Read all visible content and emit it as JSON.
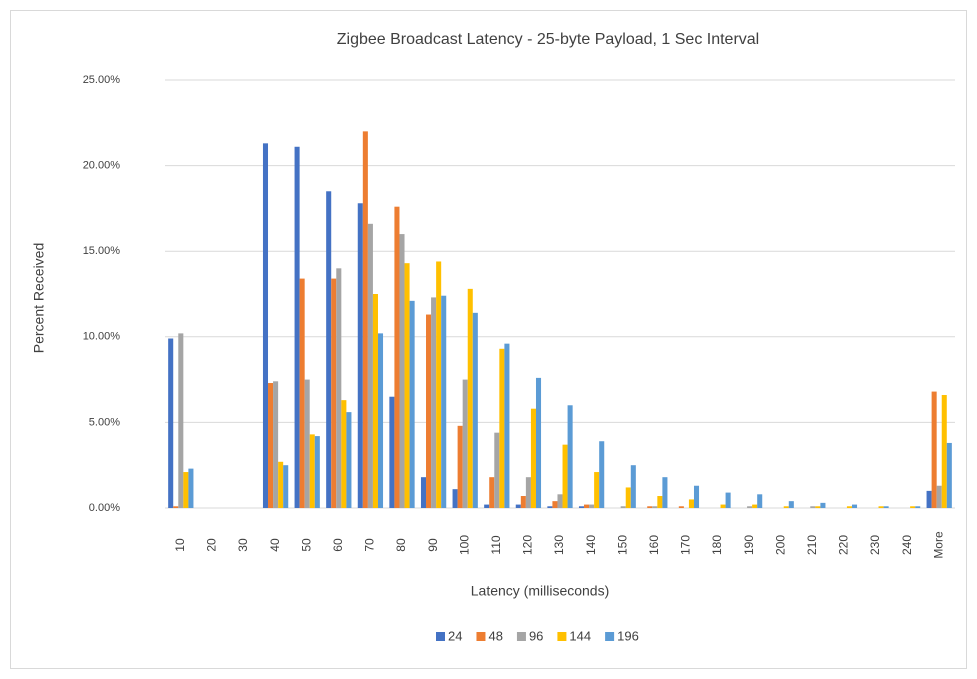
{
  "chart_data": {
    "type": "bar",
    "title": "Zigbee Broadcast Latency - 25-byte Payload, 1 Sec Interval",
    "x_label": "Latency (milliseconds)",
    "y_label": "Percent Received",
    "categories": [
      "10",
      "20",
      "30",
      "40",
      "50",
      "60",
      "70",
      "80",
      "90",
      "100",
      "110",
      "120",
      "130",
      "140",
      "150",
      "160",
      "170",
      "180",
      "190",
      "200",
      "210",
      "220",
      "230",
      "240",
      "More"
    ],
    "series": [
      {
        "name": "24",
        "color": "#4472c4",
        "values": [
          9.9,
          0,
          0,
          21.3,
          21.1,
          18.5,
          17.8,
          6.5,
          1.8,
          1.1,
          0.2,
          0.2,
          0.1,
          0.1,
          0,
          0,
          0,
          0,
          0,
          0,
          0,
          0,
          0,
          0,
          1.0
        ]
      },
      {
        "name": "48",
        "color": "#ed7d31",
        "values": [
          0.1,
          0,
          0,
          7.3,
          13.4,
          13.4,
          22.0,
          17.6,
          11.3,
          4.8,
          1.8,
          0.7,
          0.4,
          0.2,
          0,
          0.1,
          0.1,
          0,
          0,
          0,
          0,
          0,
          0,
          0,
          6.8
        ]
      },
      {
        "name": "96",
        "color": "#a5a5a5",
        "values": [
          10.2,
          0,
          0,
          7.4,
          7.5,
          14.0,
          16.6,
          16.0,
          12.3,
          7.5,
          4.4,
          1.8,
          0.8,
          0.2,
          0.1,
          0.1,
          0,
          0,
          0.1,
          0,
          0.1,
          0,
          0,
          0,
          1.3
        ]
      },
      {
        "name": "144",
        "color": "#ffc000",
        "values": [
          2.1,
          0,
          0,
          2.7,
          4.3,
          6.3,
          12.5,
          14.3,
          14.4,
          12.8,
          9.3,
          5.8,
          3.7,
          2.1,
          1.2,
          0.7,
          0.5,
          0.2,
          0.2,
          0.1,
          0.1,
          0.1,
          0.1,
          0.1,
          6.6
        ]
      },
      {
        "name": "196",
        "color": "#5b9bd5",
        "values": [
          2.3,
          0,
          0,
          2.5,
          4.2,
          5.6,
          10.2,
          12.1,
          12.4,
          11.4,
          9.6,
          7.6,
          6.0,
          3.9,
          2.5,
          1.8,
          1.3,
          0.9,
          0.8,
          0.4,
          0.3,
          0.2,
          0.1,
          0.1,
          3.8
        ]
      }
    ],
    "ylim": [
      0,
      25
    ],
    "yticks": [
      {
        "value": 0,
        "label": "0.00%"
      },
      {
        "value": 5,
        "label": "5.00%"
      },
      {
        "value": 10,
        "label": "10.00%"
      },
      {
        "value": 15,
        "label": "15.00%"
      },
      {
        "value": 20,
        "label": "20.00%"
      },
      {
        "value": 25,
        "label": "25.00%"
      }
    ],
    "grid": true,
    "legend": "bottom"
  }
}
